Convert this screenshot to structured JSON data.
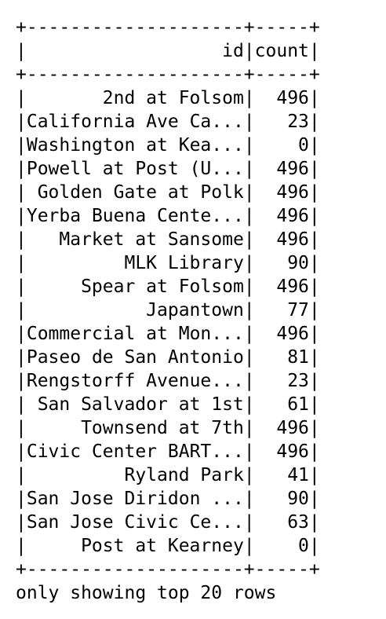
{
  "table": {
    "columns": [
      "id",
      "count"
    ],
    "rows": [
      [
        "2nd at Folsom",
        496
      ],
      [
        "California Ave Ca...",
        23
      ],
      [
        "Washington at Kea...",
        0
      ],
      [
        "Powell at Post (U...",
        496
      ],
      [
        "Golden Gate at Polk",
        496
      ],
      [
        "Yerba Buena Cente...",
        496
      ],
      [
        "Market at Sansome",
        496
      ],
      [
        "MLK Library",
        90
      ],
      [
        "Spear at Folsom",
        496
      ],
      [
        "Japantown",
        77
      ],
      [
        "Commercial at Mon...",
        496
      ],
      [
        "Paseo de San Antonio",
        81
      ],
      [
        "Rengstorff Avenue...",
        23
      ],
      [
        "San Salvador at 1st",
        61
      ],
      [
        "Townsend at 7th",
        496
      ],
      [
        "Civic Center BART...",
        496
      ],
      [
        "Ryland Park",
        41
      ],
      [
        "San Jose Diridon ...",
        90
      ],
      [
        "San Jose Civic Ce...",
        63
      ],
      [
        "Post at Kearney",
        0
      ]
    ]
  },
  "footer": "only showing top 20 rows"
}
